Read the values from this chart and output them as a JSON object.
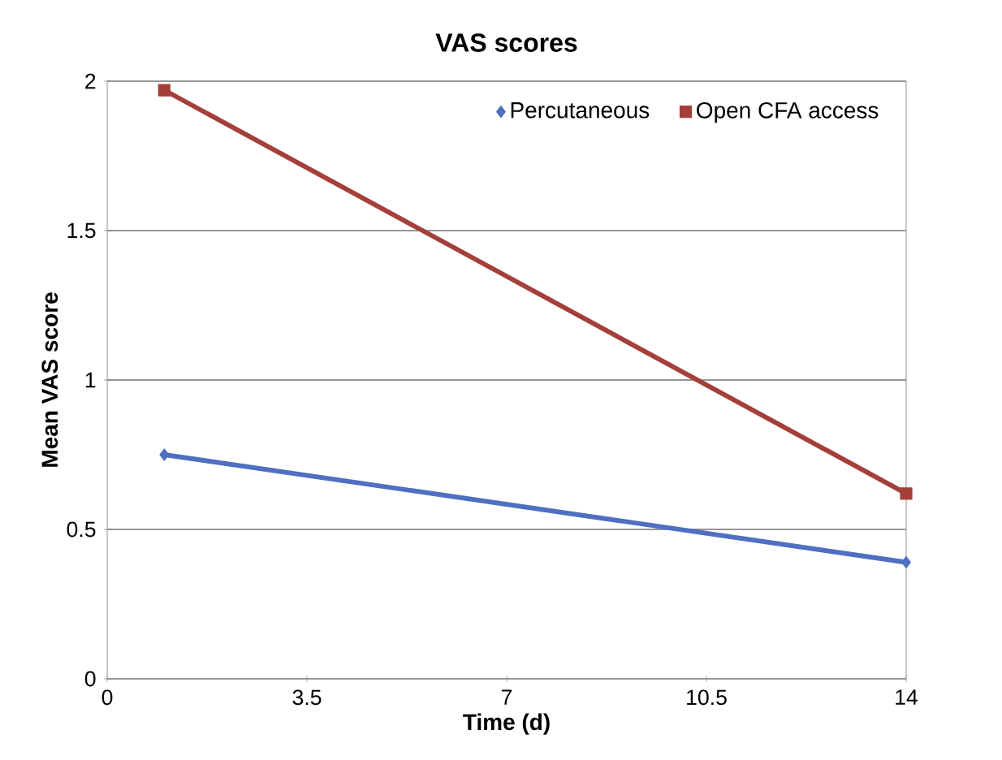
{
  "chart_data": {
    "type": "line",
    "title": "VAS scores",
    "xlabel": "Time (d)",
    "ylabel": "Mean VAS score",
    "xlim": [
      0,
      14
    ],
    "xticks": [
      0,
      3.5,
      7,
      10.5,
      14
    ],
    "ylim": [
      0,
      2
    ],
    "yticks": [
      0,
      0.5,
      1,
      1.5,
      2
    ],
    "grid": "y",
    "legend": "top right",
    "x": [
      1,
      14
    ],
    "series": [
      {
        "name": "Percutaneous",
        "color": "#4f6fc0",
        "marker": "diamond",
        "values": [
          0.75,
          0.39
        ]
      },
      {
        "name": "Open CFA access",
        "color": "#a53f3b",
        "marker": "square",
        "values": [
          1.97,
          0.62
        ]
      }
    ]
  }
}
